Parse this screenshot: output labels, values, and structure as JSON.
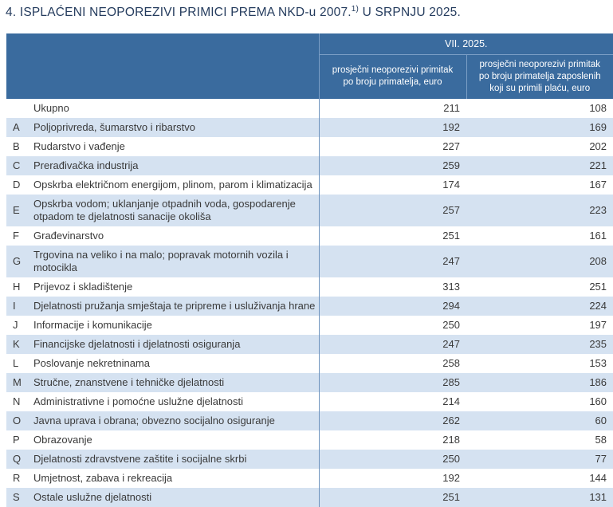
{
  "title": {
    "main": "4. ISPLAĆENI NEOPOREZIVI PRIMICI PREMA NKD-u 2007.",
    "superscript": "1)",
    "suffix": " U SRPNJU 2025."
  },
  "table": {
    "period_header": "VII. 2025.",
    "col1_header": "prosječni neoporezivi primitak po broju primatelja, euro",
    "col2_header": "prosječni neoporezivi primitak po broju primatelja zaposlenih koji su primili plaću, euro",
    "rows": [
      {
        "code": "",
        "name": "Ukupno",
        "value1": "211",
        "value2": "108"
      },
      {
        "code": "A",
        "name": "Poljoprivreda, šumarstvo i ribarstvo",
        "value1": "192",
        "value2": "169"
      },
      {
        "code": "B",
        "name": "Rudarstvo i vađenje",
        "value1": "227",
        "value2": "202"
      },
      {
        "code": "C",
        "name": "Prerađivačka industrija",
        "value1": "259",
        "value2": "221"
      },
      {
        "code": "D",
        "name": "Opskrba električnom energijom, plinom, parom i klimatizacija",
        "value1": "174",
        "value2": "167"
      },
      {
        "code": "E",
        "name": "Opskrba vodom; uklanjanje otpadnih voda, gospodarenje otpadom te djelatnosti sanacije okoliša",
        "value1": "257",
        "value2": "223"
      },
      {
        "code": "F",
        "name": "Građevinarstvo",
        "value1": "251",
        "value2": "161"
      },
      {
        "code": "G",
        "name": "Trgovina na veliko i na malo; popravak motornih vozila i motocikla",
        "value1": "247",
        "value2": "208"
      },
      {
        "code": "H",
        "name": "Prijevoz i skladištenje",
        "value1": "313",
        "value2": "251"
      },
      {
        "code": "I",
        "name": "Djelatnosti pružanja smještaja te pripreme i usluživanja hrane",
        "value1": "294",
        "value2": "224"
      },
      {
        "code": "J",
        "name": "Informacije i komunikacije",
        "value1": "250",
        "value2": "197"
      },
      {
        "code": "K",
        "name": "Financijske djelatnosti i djelatnosti osiguranja",
        "value1": "247",
        "value2": "235"
      },
      {
        "code": "L",
        "name": "Poslovanje nekretninama",
        "value1": "258",
        "value2": "153"
      },
      {
        "code": "M",
        "name": "Stručne, znanstvene i tehničke djelatnosti",
        "value1": "285",
        "value2": "186"
      },
      {
        "code": "N",
        "name": "Administrativne i pomoćne uslužne djelatnosti",
        "value1": "214",
        "value2": "160"
      },
      {
        "code": "O",
        "name": "Javna uprava i obrana; obvezno socijalno osiguranje",
        "value1": "262",
        "value2": "60"
      },
      {
        "code": "P",
        "name": "Obrazovanje",
        "value1": "218",
        "value2": "58"
      },
      {
        "code": "Q",
        "name": "Djelatnosti zdravstvene zaštite i socijalne skrbi",
        "value1": "250",
        "value2": "77"
      },
      {
        "code": "R",
        "name": "Umjetnost, zabava i rekreacija",
        "value1": "192",
        "value2": "144"
      },
      {
        "code": "S",
        "name": "Ostale uslužne djelatnosti",
        "value1": "251",
        "value2": "131"
      }
    ]
  },
  "colors": {
    "header_bg": "#3A6B9E",
    "header_divider": "#7B9EC6",
    "row_stripe": "#D5E2F1",
    "body_divider": "#6F94BE",
    "title_text": "#253C5E",
    "body_text": "#3A3A3A"
  }
}
